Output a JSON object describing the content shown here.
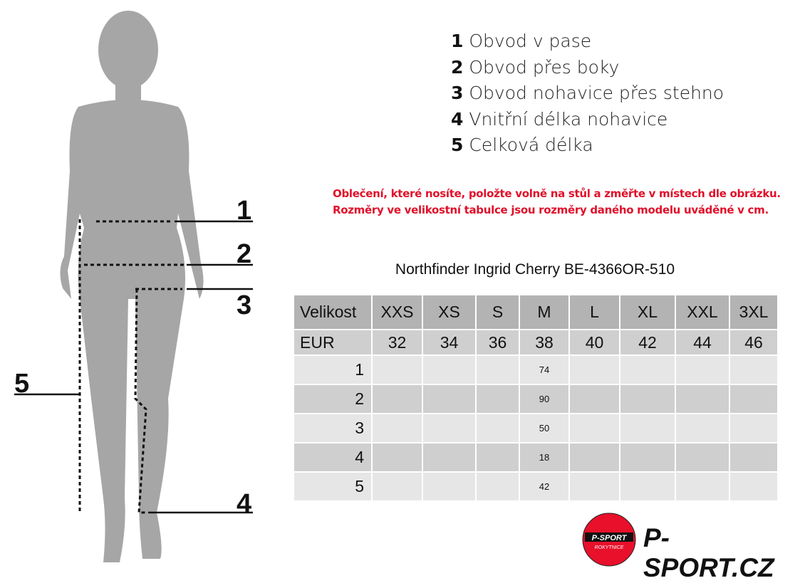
{
  "legend": [
    {
      "num": "1",
      "text": "Obvod v pase"
    },
    {
      "num": "2",
      "text": "Obvod přes boky"
    },
    {
      "num": "3",
      "text": "Obvod nohavice přes stehno"
    },
    {
      "num": "4",
      "text": "Vnitřní délka nohavice"
    },
    {
      "num": "5",
      "text": "Celková délka"
    }
  ],
  "note": {
    "line1": "Oblečení, které nosíte, položte volně na stůl a změřte v místech dle obrázku.",
    "line2": "Rozměry ve velikostní tabulce jsou rozměry daného modelu uváděné v cm."
  },
  "product_title": "Northfinder Ingrid Cherry BE-4366OR-510",
  "table": {
    "header": [
      "Velikost",
      "XXS",
      "XS",
      "S",
      "M",
      "L",
      "XL",
      "XXL",
      "3XL"
    ],
    "eur": [
      "EUR",
      "32",
      "34",
      "36",
      "38",
      "40",
      "42",
      "44",
      "46"
    ],
    "rows": [
      [
        "1",
        "",
        "",
        "",
        "74",
        "",
        "",
        "",
        ""
      ],
      [
        "2",
        "",
        "",
        "",
        "90",
        "",
        "",
        "",
        ""
      ],
      [
        "3",
        "",
        "",
        "",
        "50",
        "",
        "",
        "",
        ""
      ],
      [
        "4",
        "",
        "",
        "",
        "18",
        "",
        "",
        "",
        ""
      ],
      [
        "5",
        "",
        "",
        "",
        "42",
        "",
        "",
        "",
        ""
      ]
    ]
  },
  "figure_labels": [
    "1",
    "2",
    "3",
    "4",
    "5"
  ],
  "logo": {
    "badge_top": "P-SPORT",
    "badge_bottom": "ROKYTNICE",
    "brand": "P-SPORT.CZ",
    "color": "#e8102a"
  }
}
